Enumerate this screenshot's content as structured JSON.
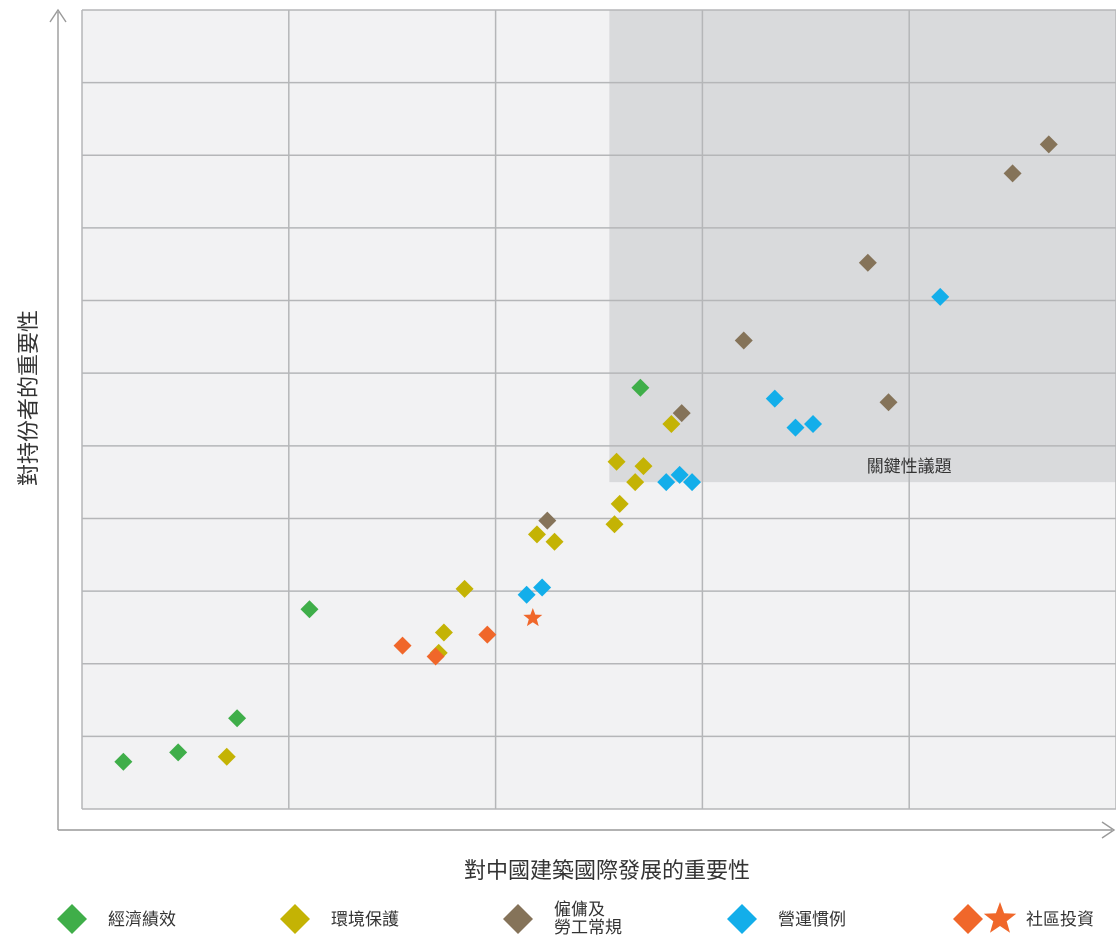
{
  "chart_data": {
    "type": "scatter",
    "title": "",
    "xlabel": "對中國建築國際發展的重要性",
    "ylabel": "對持份者的重要性",
    "xlim": [
      0,
      10
    ],
    "ylim": [
      0,
      11
    ],
    "grid": true,
    "highlight_region": {
      "label": "關鍵性議題",
      "x": [
        5.1,
        10
      ],
      "y": [
        4.5,
        11
      ],
      "color": "#d9dadc"
    },
    "legend_position": "bottom",
    "series": [
      {
        "name": "經濟績效",
        "marker": "diamond",
        "color": "#3fae49",
        "points": [
          [
            0.4,
            0.65
          ],
          [
            0.93,
            0.78
          ],
          [
            1.5,
            1.25
          ],
          [
            2.2,
            2.75
          ],
          [
            5.4,
            5.8
          ]
        ]
      },
      {
        "name": "環境保護",
        "marker": "diamond",
        "color": "#c4b304",
        "points": [
          [
            1.4,
            0.72
          ],
          [
            3.45,
            2.15
          ],
          [
            3.5,
            2.43
          ],
          [
            3.7,
            3.03
          ],
          [
            4.4,
            3.78
          ],
          [
            4.57,
            3.68
          ],
          [
            5.15,
            3.92
          ],
          [
            5.2,
            4.2
          ],
          [
            5.35,
            4.5
          ],
          [
            5.17,
            4.78
          ],
          [
            5.43,
            4.72
          ],
          [
            5.7,
            5.3
          ]
        ]
      },
      {
        "name": "僱傭及\n勞工常規",
        "marker": "diamond",
        "color": "#857359",
        "points": [
          [
            4.5,
            3.97
          ],
          [
            5.8,
            5.45
          ],
          [
            6.4,
            6.45
          ],
          [
            7.6,
            7.52
          ],
          [
            7.8,
            5.6
          ],
          [
            9.0,
            8.75
          ],
          [
            9.35,
            9.15
          ]
        ]
      },
      {
        "name": "營運慣例",
        "marker": "diamond",
        "color": "#13aeea",
        "points": [
          [
            4.3,
            2.95
          ],
          [
            4.45,
            3.05
          ],
          [
            5.65,
            4.5
          ],
          [
            5.78,
            4.6
          ],
          [
            5.9,
            4.5
          ],
          [
            6.7,
            5.65
          ],
          [
            6.9,
            5.25
          ],
          [
            7.07,
            5.3
          ],
          [
            8.3,
            7.05
          ]
        ]
      },
      {
        "name": "社區投資",
        "marker": "diamond",
        "color": "#f0672a",
        "points": [
          [
            3.1,
            2.25
          ],
          [
            3.42,
            2.1
          ],
          [
            3.92,
            2.4
          ]
        ],
        "extra_points": [
          {
            "marker": "star",
            "point": [
              4.36,
              2.63
            ]
          }
        ]
      }
    ]
  }
}
